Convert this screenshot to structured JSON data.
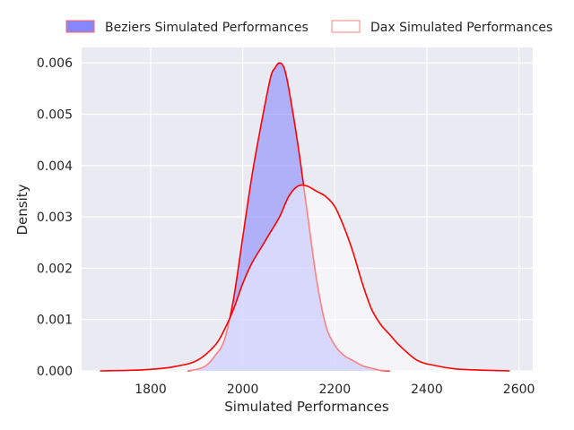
{
  "chart_data": {
    "type": "area",
    "xlabel": "Simulated Performances",
    "ylabel": "Density",
    "xlim": [
      1650,
      2630
    ],
    "ylim": [
      0,
      0.0063
    ],
    "x_ticks": [
      1800,
      2000,
      2200,
      2400,
      2600
    ],
    "y_ticks": [
      0.0,
      0.001,
      0.002,
      0.003,
      0.004,
      0.005,
      0.006
    ],
    "x_tick_labels": [
      "1800",
      "2000",
      "2200",
      "2400",
      "2600"
    ],
    "y_tick_labels": [
      "0.000",
      "0.001",
      "0.002",
      "0.003",
      "0.004",
      "0.005",
      "0.006"
    ],
    "grid": true,
    "legend_position": "top",
    "series": [
      {
        "name": "Beziers Simulated Performances",
        "fill": "#8080ff",
        "fill_opacity": 0.55,
        "line": "#ff0000",
        "x": [
          1880,
          1900,
          1920,
          1940,
          1960,
          1980,
          2000,
          2020,
          2040,
          2060,
          2070,
          2080,
          2090,
          2100,
          2120,
          2140,
          2160,
          2180,
          2200,
          2220,
          2240,
          2260,
          2280,
          2300,
          2320
        ],
        "y": [
          0.0,
          3e-05,
          0.0001,
          0.0003,
          0.0006,
          0.0014,
          0.0026,
          0.0038,
          0.0048,
          0.0057,
          0.0059,
          0.006,
          0.0059,
          0.0055,
          0.0044,
          0.0031,
          0.0018,
          0.0009,
          0.0005,
          0.0003,
          0.0002,
          0.0001,
          5e-05,
          1e-05,
          0.0
        ]
      },
      {
        "name": "Dax Simulated Performances",
        "fill": "#ffffff",
        "fill_opacity": 0.5,
        "line": "#ff0000",
        "x": [
          1690,
          1750,
          1800,
          1850,
          1900,
          1940,
          1960,
          1980,
          2000,
          2020,
          2040,
          2060,
          2080,
          2100,
          2120,
          2140,
          2160,
          2180,
          2200,
          2220,
          2240,
          2260,
          2280,
          2300,
          2320,
          2340,
          2380,
          2420,
          2460,
          2500,
          2540,
          2580
        ],
        "y": [
          0.0,
          1e-05,
          3e-05,
          8e-05,
          0.0002,
          0.0005,
          0.0008,
          0.0012,
          0.0017,
          0.0021,
          0.0024,
          0.0027,
          0.003,
          0.0034,
          0.0036,
          0.0036,
          0.0035,
          0.0034,
          0.0032,
          0.0028,
          0.0023,
          0.0017,
          0.0012,
          0.0009,
          0.0007,
          0.0005,
          0.0002,
          0.0001,
          4e-05,
          2e-05,
          1e-05,
          0.0
        ]
      }
    ]
  },
  "colors": {
    "plot_background": "#eaeaf2",
    "grid": "#ffffff",
    "kde_line": "#ff0000"
  }
}
